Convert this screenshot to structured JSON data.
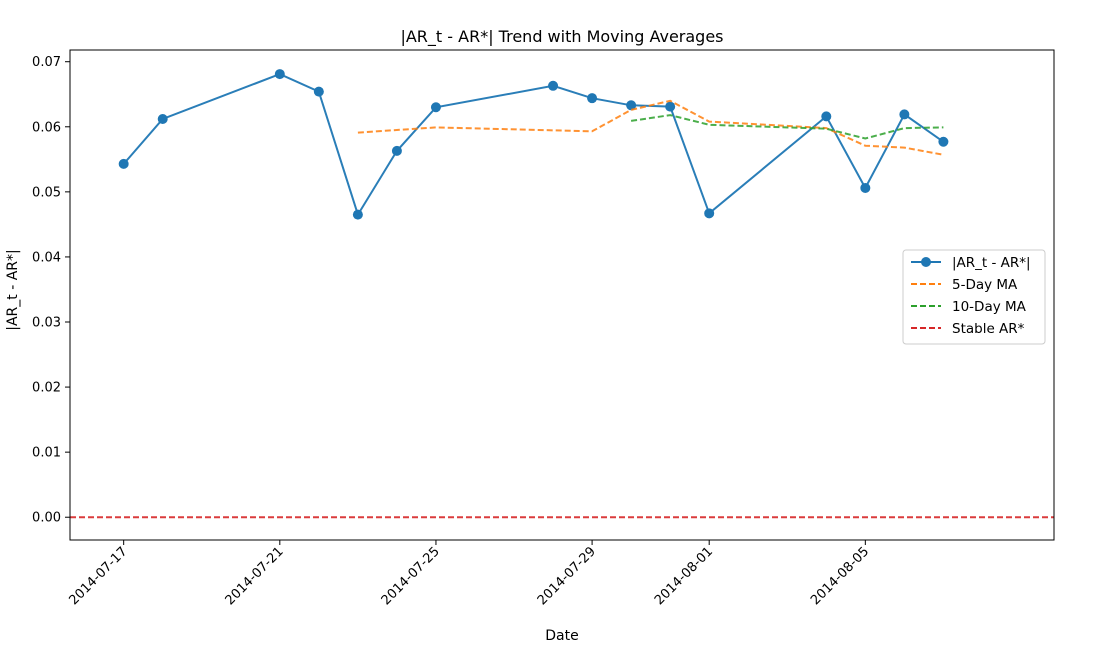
{
  "chart_data": {
    "type": "line",
    "title": "|AR_t - AR*| Trend with Moving Averages",
    "xlabel": "Date",
    "ylabel": "|AR_t - AR*|",
    "ylim": [
      -0.0035,
      0.0718
    ],
    "xlim": [
      "2014-07-15 15:00",
      "2014-08-09 20:00"
    ],
    "yticks": [
      "0.00",
      "0.01",
      "0.02",
      "0.03",
      "0.04",
      "0.05",
      "0.06",
      "0.07"
    ],
    "xticks": [
      "2014-07-17",
      "2014-07-21",
      "2014-07-25",
      "2014-07-29",
      "2014-08-01",
      "2014-08-05"
    ],
    "grid": false,
    "legend_position": "center-right",
    "series": [
      {
        "name": "|AR_t - AR*|",
        "color": "#1f77b4",
        "style": "solid",
        "marker": "circle",
        "points": [
          [
            "2014-07-17",
            0.0543
          ],
          [
            "2014-07-18",
            0.0612
          ],
          [
            "2014-07-21",
            0.0681
          ],
          [
            "2014-07-22",
            0.0654
          ],
          [
            "2014-07-23",
            0.0465
          ],
          [
            "2014-07-24",
            0.0563
          ],
          [
            "2014-07-25",
            0.063
          ],
          [
            "2014-07-28",
            0.0663
          ],
          [
            "2014-07-29",
            0.0644
          ],
          [
            "2014-07-30",
            0.0633
          ],
          [
            "2014-07-31",
            0.0631
          ],
          [
            "2014-08-01",
            0.0467
          ],
          [
            "2014-08-04",
            0.0616
          ],
          [
            "2014-08-05",
            0.0506
          ],
          [
            "2014-08-06",
            0.0619
          ],
          [
            "2014-08-07",
            0.0577
          ]
        ]
      },
      {
        "name": "5-Day MA",
        "color": "#ff7f0e",
        "style": "dashed",
        "points": [
          [
            "2014-07-23",
            0.0591
          ],
          [
            "2014-07-25",
            0.0599
          ],
          [
            "2014-07-29",
            0.0593
          ],
          [
            "2014-07-30",
            0.0626
          ],
          [
            "2014-07-31",
            0.064
          ],
          [
            "2014-08-01",
            0.0608
          ],
          [
            "2014-08-04",
            0.0598
          ],
          [
            "2014-08-05",
            0.0571
          ],
          [
            "2014-08-06",
            0.0568
          ],
          [
            "2014-08-07",
            0.0557
          ]
        ]
      },
      {
        "name": "10-Day MA",
        "color": "#2ca02c",
        "style": "dashed",
        "points": [
          [
            "2014-07-30",
            0.0609
          ],
          [
            "2014-07-31",
            0.0618
          ],
          [
            "2014-08-01",
            0.0603
          ],
          [
            "2014-08-04",
            0.0597
          ],
          [
            "2014-08-05",
            0.0582
          ],
          [
            "2014-08-06",
            0.0598
          ],
          [
            "2014-08-07",
            0.0599
          ]
        ]
      },
      {
        "name": "Stable AR*",
        "color": "#d62728",
        "style": "dashed",
        "hline": 0.0
      }
    ]
  }
}
